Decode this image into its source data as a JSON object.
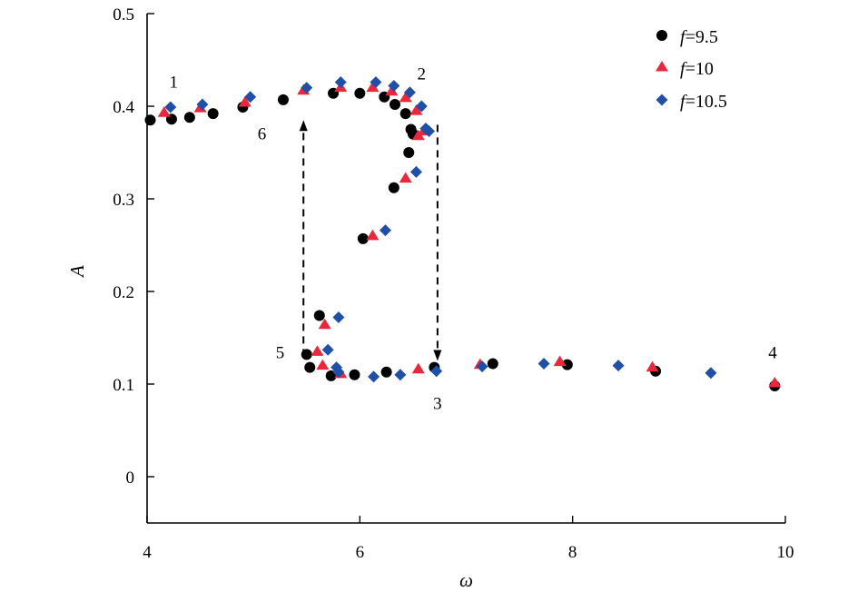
{
  "chart_data": {
    "type": "scatter",
    "title": "",
    "xlabel": "ω",
    "ylabel": "A",
    "xlim": [
      4,
      10
    ],
    "ylim": [
      -0.05,
      0.5
    ],
    "xticks": [
      4,
      6,
      8,
      10
    ],
    "yticks": [
      0,
      0.1,
      0.2,
      0.3,
      0.4,
      0.5
    ],
    "grid": false,
    "legend_position": "top-right",
    "series": [
      {
        "name_prefix": "f",
        "name_suffix": "=9.5",
        "marker": "circle",
        "color": "#000000",
        "points": [
          [
            4.03,
            0.385
          ],
          [
            4.23,
            0.386
          ],
          [
            4.4,
            0.388
          ],
          [
            4.62,
            0.392
          ],
          [
            4.9,
            0.399
          ],
          [
            5.28,
            0.407
          ],
          [
            5.75,
            0.414
          ],
          [
            6.0,
            0.414
          ],
          [
            6.23,
            0.41
          ],
          [
            6.33,
            0.402
          ],
          [
            6.43,
            0.392
          ],
          [
            6.48,
            0.375
          ],
          [
            6.5,
            0.37
          ],
          [
            6.46,
            0.35
          ],
          [
            6.32,
            0.312
          ],
          [
            6.03,
            0.257
          ],
          [
            5.62,
            0.174
          ],
          [
            5.5,
            0.132
          ],
          [
            5.53,
            0.118
          ],
          [
            5.73,
            0.109
          ],
          [
            5.95,
            0.11
          ],
          [
            6.25,
            0.113
          ],
          [
            6.7,
            0.118
          ],
          [
            7.25,
            0.122
          ],
          [
            7.95,
            0.121
          ],
          [
            8.78,
            0.114
          ],
          [
            9.9,
            0.098
          ]
        ]
      },
      {
        "name_prefix": "f",
        "name_suffix": "=10",
        "marker": "triangle",
        "color": "#e8283c",
        "points": [
          [
            4.16,
            0.393
          ],
          [
            4.5,
            0.398
          ],
          [
            4.92,
            0.404
          ],
          [
            5.47,
            0.417
          ],
          [
            5.82,
            0.42
          ],
          [
            6.12,
            0.42
          ],
          [
            6.3,
            0.416
          ],
          [
            6.43,
            0.409
          ],
          [
            6.53,
            0.395
          ],
          [
            6.55,
            0.368
          ],
          [
            6.6,
            0.373
          ],
          [
            6.43,
            0.322
          ],
          [
            6.12,
            0.26
          ],
          [
            5.67,
            0.164
          ],
          [
            5.6,
            0.135
          ],
          [
            5.65,
            0.12
          ],
          [
            5.82,
            0.111
          ],
          [
            6.55,
            0.116
          ],
          [
            7.13,
            0.121
          ],
          [
            7.88,
            0.124
          ],
          [
            8.75,
            0.118
          ],
          [
            9.9,
            0.101
          ]
        ]
      },
      {
        "name_prefix": "f",
        "name_suffix": "=10.5",
        "marker": "diamond",
        "color": "#1f4fa6",
        "points": [
          [
            4.22,
            0.399
          ],
          [
            4.52,
            0.402
          ],
          [
            4.97,
            0.41
          ],
          [
            5.5,
            0.42
          ],
          [
            5.82,
            0.426
          ],
          [
            6.15,
            0.426
          ],
          [
            6.32,
            0.422
          ],
          [
            6.47,
            0.415
          ],
          [
            6.58,
            0.4
          ],
          [
            6.62,
            0.376
          ],
          [
            6.65,
            0.373
          ],
          [
            6.53,
            0.329
          ],
          [
            6.24,
            0.266
          ],
          [
            5.8,
            0.172
          ],
          [
            5.7,
            0.137
          ],
          [
            5.78,
            0.118
          ],
          [
            5.8,
            0.113
          ],
          [
            6.13,
            0.108
          ],
          [
            6.38,
            0.11
          ],
          [
            6.72,
            0.114
          ],
          [
            7.15,
            0.119
          ],
          [
            7.73,
            0.122
          ],
          [
            8.43,
            0.12
          ],
          [
            9.3,
            0.112
          ]
        ]
      }
    ],
    "annotations": [
      {
        "text": "1",
        "x": 4.25,
        "y": 0.42
      },
      {
        "text": "2",
        "x": 6.58,
        "y": 0.429
      },
      {
        "text": "3",
        "x": 6.73,
        "y": 0.073
      },
      {
        "text": "4",
        "x": 9.88,
        "y": 0.128
      },
      {
        "text": "5",
        "x": 5.25,
        "y": 0.128
      },
      {
        "text": "6",
        "x": 5.08,
        "y": 0.364
      }
    ],
    "jump_lines": [
      {
        "from": [
          5.47,
          0.13
        ],
        "to": [
          5.47,
          0.385
        ],
        "style": "dashed",
        "arrow": "end"
      },
      {
        "from": [
          6.73,
          0.38
        ],
        "to": [
          6.73,
          0.125
        ],
        "style": "dashed",
        "arrow": "end"
      }
    ]
  }
}
